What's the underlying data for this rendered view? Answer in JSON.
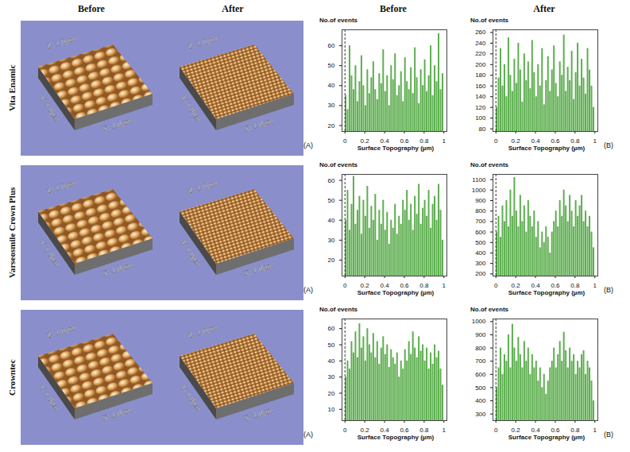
{
  "columns": [
    "Before",
    "After"
  ],
  "rows": [
    "Vita Enamic",
    "Varseosmile Crown Plus",
    "Crowntec"
  ],
  "panel_letters": [
    "(A)",
    "(B)"
  ],
  "surface_axes": [
    "X: 1.0µm",
    "Y: 1.0µm",
    "Z: 1.0µm"
  ],
  "chart_data": [
    {
      "type": "histogram",
      "x_label": "Surface Topography (µm)",
      "y_label": "No.of events",
      "color": "#5cae4e",
      "bins": [
        0,
        0.02,
        0.04,
        0.06,
        0.08,
        0.1,
        0.12,
        0.14,
        0.16,
        0.18,
        0.2,
        0.22,
        0.24,
        0.26,
        0.28,
        0.3,
        0.32,
        0.34,
        0.36,
        0.38,
        0.4,
        0.42,
        0.44,
        0.46,
        0.48,
        0.5,
        0.52,
        0.54,
        0.56,
        0.58,
        0.6,
        0.62,
        0.64,
        0.66,
        0.68,
        0.7,
        0.72,
        0.74,
        0.76,
        0.78,
        0.8,
        0.82,
        0.84,
        0.86,
        0.88,
        0.9,
        0.92,
        0.94,
        0.96,
        0.98,
        1
      ],
      "counts": [
        35,
        28,
        60,
        45,
        38,
        50,
        32,
        42,
        55,
        40,
        30,
        48,
        36,
        44,
        52,
        38,
        33,
        46,
        41,
        58,
        37,
        45,
        30,
        50,
        43,
        56,
        35,
        40,
        47,
        32,
        54,
        42,
        38,
        49,
        36,
        59,
        44,
        31,
        48,
        40,
        53,
        37,
        45,
        60,
        35,
        50,
        42,
        66,
        38,
        46
      ],
      "xlim": [
        -0.03,
        1.03
      ],
      "xticks": [
        0,
        0.2,
        0.4,
        0.6,
        0.8,
        1
      ],
      "ylim": [
        17,
        68
      ],
      "yticks": [
        20,
        30,
        40,
        50,
        60
      ],
      "reference_line": 0
    },
    {
      "type": "histogram",
      "x_label": "Surface Topography (µm)",
      "y_label": "No.of events",
      "color": "#5cae4e",
      "bins": [
        0,
        0.02,
        0.04,
        0.06,
        0.08,
        0.1,
        0.12,
        0.14,
        0.16,
        0.18,
        0.2,
        0.22,
        0.24,
        0.26,
        0.28,
        0.3,
        0.32,
        0.34,
        0.36,
        0.38,
        0.4,
        0.42,
        0.44,
        0.46,
        0.48,
        0.5,
        0.52,
        0.54,
        0.56,
        0.58,
        0.6,
        0.62,
        0.64,
        0.66,
        0.68,
        0.7,
        0.72,
        0.74,
        0.76,
        0.78,
        0.8,
        0.82,
        0.84,
        0.86,
        0.88,
        0.9,
        0.92,
        0.94,
        0.96,
        0.98,
        1
      ],
      "counts": [
        120,
        175,
        230,
        160,
        200,
        140,
        250,
        180,
        150,
        210,
        165,
        240,
        190,
        130,
        220,
        170,
        205,
        155,
        245,
        185,
        140,
        200,
        160,
        230,
        125,
        170,
        215,
        150,
        190,
        235,
        165,
        140,
        205,
        180,
        255,
        150,
        195,
        170,
        225,
        135,
        185,
        240,
        160,
        210,
        175,
        145,
        230,
        190,
        160,
        120
      ],
      "xlim": [
        -0.03,
        1.03
      ],
      "xticks": [
        0,
        0.2,
        0.4,
        0.6,
        0.8,
        1
      ],
      "ylim": [
        75,
        265
      ],
      "yticks": [
        80,
        100,
        120,
        140,
        160,
        180,
        200,
        220,
        240,
        260
      ],
      "reference_line": 0
    },
    {
      "type": "histogram",
      "x_label": "Surface Topography (µm)",
      "y_label": "No.of events",
      "color": "#5cae4e",
      "bins": [
        0,
        0.02,
        0.04,
        0.06,
        0.08,
        0.1,
        0.12,
        0.14,
        0.16,
        0.18,
        0.2,
        0.22,
        0.24,
        0.26,
        0.28,
        0.3,
        0.32,
        0.34,
        0.36,
        0.38,
        0.4,
        0.42,
        0.44,
        0.46,
        0.48,
        0.5,
        0.52,
        0.54,
        0.56,
        0.58,
        0.6,
        0.62,
        0.64,
        0.66,
        0.68,
        0.7,
        0.72,
        0.74,
        0.76,
        0.78,
        0.8,
        0.82,
        0.84,
        0.86,
        0.88,
        0.9,
        0.92,
        0.94,
        0.96,
        0.98,
        1
      ],
      "counts": [
        40,
        55,
        35,
        48,
        62,
        38,
        45,
        52,
        33,
        50,
        42,
        57,
        36,
        47,
        40,
        53,
        30,
        45,
        38,
        50,
        35,
        44,
        28,
        40,
        36,
        48,
        33,
        42,
        38,
        50,
        45,
        55,
        40,
        48,
        35,
        52,
        43,
        58,
        38,
        46,
        50,
        42,
        55,
        36,
        48,
        52,
        40,
        58,
        45,
        30
      ],
      "xlim": [
        -0.03,
        1.03
      ],
      "xticks": [
        0,
        0.2,
        0.4,
        0.6,
        0.8,
        1
      ],
      "ylim": [
        12,
        63
      ],
      "yticks": [
        20,
        30,
        40,
        50,
        60
      ],
      "reference_line": 0
    },
    {
      "type": "histogram",
      "x_label": "Surface Topography (µm)",
      "y_label": "No.of events",
      "color": "#5cae4e",
      "bins": [
        0,
        0.02,
        0.04,
        0.06,
        0.08,
        0.1,
        0.12,
        0.14,
        0.16,
        0.18,
        0.2,
        0.22,
        0.24,
        0.26,
        0.28,
        0.3,
        0.32,
        0.34,
        0.36,
        0.38,
        0.4,
        0.42,
        0.44,
        0.46,
        0.48,
        0.5,
        0.52,
        0.54,
        0.56,
        0.58,
        0.6,
        0.62,
        0.64,
        0.66,
        0.68,
        0.7,
        0.72,
        0.74,
        0.76,
        0.78,
        0.8,
        0.82,
        0.84,
        0.86,
        0.88,
        0.9,
        0.92,
        0.94,
        0.96,
        0.98,
        1
      ],
      "counts": [
        600,
        750,
        550,
        850,
        700,
        900,
        650,
        1000,
        750,
        1120,
        800,
        650,
        950,
        700,
        850,
        600,
        900,
        750,
        650,
        800,
        550,
        700,
        450,
        600,
        500,
        650,
        550,
        400,
        600,
        700,
        800,
        650,
        900,
        750,
        1000,
        850,
        700,
        950,
        800,
        650,
        900,
        750,
        850,
        950,
        700,
        800,
        650,
        750,
        600,
        450
      ],
      "xlim": [
        -0.03,
        1.03
      ],
      "xticks": [
        0,
        0.2,
        0.4,
        0.6,
        0.8,
        1
      ],
      "ylim": [
        180,
        1150
      ],
      "yticks": [
        200,
        300,
        400,
        500,
        600,
        700,
        800,
        900,
        1000,
        1100
      ],
      "reference_line": 0
    },
    {
      "type": "histogram",
      "x_label": "Surface Topography (µm)",
      "y_label": "No.of events",
      "color": "#5cae4e",
      "bins": [
        0,
        0.02,
        0.04,
        0.06,
        0.08,
        0.1,
        0.12,
        0.14,
        0.16,
        0.18,
        0.2,
        0.22,
        0.24,
        0.26,
        0.28,
        0.3,
        0.32,
        0.34,
        0.36,
        0.38,
        0.4,
        0.42,
        0.44,
        0.46,
        0.48,
        0.5,
        0.52,
        0.54,
        0.56,
        0.58,
        0.6,
        0.62,
        0.64,
        0.66,
        0.68,
        0.7,
        0.72,
        0.74,
        0.76,
        0.78,
        0.8,
        0.82,
        0.84,
        0.86,
        0.88,
        0.9,
        0.92,
        0.94,
        0.96,
        0.98,
        1
      ],
      "counts": [
        30,
        40,
        35,
        52,
        45,
        58,
        42,
        63,
        48,
        55,
        40,
        60,
        50,
        45,
        57,
        42,
        52,
        38,
        48,
        55,
        44,
        50,
        36,
        47,
        42,
        38,
        45,
        30,
        40,
        35,
        47,
        40,
        52,
        44,
        58,
        48,
        42,
        55,
        46,
        50,
        40,
        48,
        35,
        45,
        38,
        50,
        42,
        46,
        35,
        25
      ],
      "xlim": [
        -0.03,
        1.03
      ],
      "xticks": [
        0,
        0.2,
        0.4,
        0.6,
        0.8,
        1
      ],
      "ylim": [
        3,
        66
      ],
      "yticks": [
        10,
        20,
        30,
        40,
        50,
        60
      ],
      "reference_line": 0
    },
    {
      "type": "histogram",
      "x_label": "Surface Topography (µm)",
      "y_label": "No.of events",
      "color": "#5cae4e",
      "bins": [
        0,
        0.02,
        0.04,
        0.06,
        0.08,
        0.1,
        0.12,
        0.14,
        0.16,
        0.18,
        0.2,
        0.22,
        0.24,
        0.26,
        0.28,
        0.3,
        0.32,
        0.34,
        0.36,
        0.38,
        0.4,
        0.42,
        0.44,
        0.46,
        0.48,
        0.5,
        0.52,
        0.54,
        0.56,
        0.58,
        0.6,
        0.62,
        0.64,
        0.66,
        0.68,
        0.7,
        0.72,
        0.74,
        0.76,
        0.78,
        0.8,
        0.82,
        0.84,
        0.86,
        0.88,
        0.9,
        0.92,
        0.94,
        0.96,
        0.98,
        1
      ],
      "counts": [
        500,
        650,
        800,
        600,
        750,
        700,
        900,
        650,
        980,
        800,
        700,
        880,
        750,
        650,
        850,
        700,
        800,
        600,
        750,
        650,
        700,
        550,
        650,
        500,
        600,
        450,
        550,
        650,
        700,
        800,
        650,
        750,
        850,
        700,
        920,
        780,
        650,
        800,
        700,
        750,
        600,
        700,
        650,
        750,
        780,
        600,
        700,
        650,
        550,
        400
      ],
      "xlim": [
        -0.03,
        1.03
      ],
      "xticks": [
        0,
        0.2,
        0.4,
        0.6,
        0.8,
        1
      ],
      "ylim": [
        250,
        1020
      ],
      "yticks": [
        300,
        400,
        500,
        600,
        700,
        800,
        900,
        1000
      ],
      "reference_line": 0
    }
  ]
}
